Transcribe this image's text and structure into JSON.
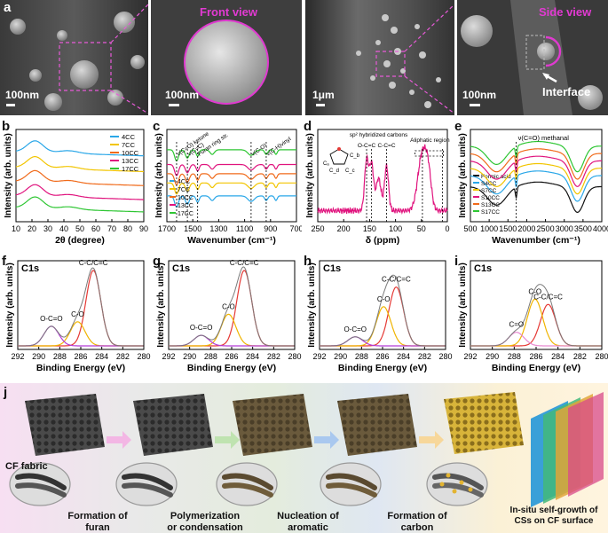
{
  "figure": {
    "row1": {
      "panel_a": {
        "letter": "a",
        "front_view_label": "Front view",
        "side_view_label": "Side view",
        "interface_label": "Interface",
        "scalebars": [
          "100nm",
          "100nm",
          "1μm",
          "100nm"
        ]
      }
    },
    "panel_b": {
      "letter": "b"
    },
    "panel_c": {
      "letter": "c"
    },
    "panel_d": {
      "letter": "d"
    },
    "panel_e": {
      "letter": "e"
    },
    "panel_f": {
      "letter": "f"
    },
    "panel_g": {
      "letter": "g"
    },
    "panel_h": {
      "letter": "h"
    },
    "panel_i": {
      "letter": "i"
    },
    "panel_j": {
      "letter": "j",
      "stage_labels": [
        "CF fabric",
        "Formation of furan compounds",
        "Polymerization or condensation",
        "Nucleation of aromatic clusters",
        "Formation of carbon spheres",
        "In-situ self-growth of CSs on CF surface"
      ]
    }
  },
  "chart_data": [
    {
      "id": "b",
      "type": "line",
      "xlabel": "2θ (degree)",
      "ylabel": "Intensity (arb. units)",
      "xlim": [
        10,
        90
      ],
      "x_ticks": [
        "10",
        "20",
        "30",
        "40",
        "50",
        "60",
        "70",
        "80",
        "90"
      ],
      "legend": [
        "4CC",
        "7CC",
        "10CC",
        "13CC",
        "17CC"
      ],
      "legend_position": "top-right",
      "colors": [
        "#2aa7e8",
        "#f2c500",
        "#f06a1a",
        "#e0147e",
        "#2ec633"
      ],
      "peak_2theta": 22,
      "offsets": [
        0.8,
        0.62,
        0.46,
        0.3,
        0.16
      ]
    },
    {
      "id": "c",
      "type": "line",
      "xlabel": "Wavenumber (cm⁻¹)",
      "ylabel": "Intensity (arb. units)",
      "x_ticks": [
        "1700",
        "1500",
        "1300",
        "1100",
        "900",
        "700"
      ],
      "xlim": [
        1800,
        600
      ],
      "x_reversed": true,
      "legend": [
        "4CC",
        "7CC",
        "10CC",
        "13CC",
        "17CC"
      ],
      "legend_position": "bottom-left",
      "colors": [
        "#2aa7e8",
        "#f2c500",
        "#f06a1a",
        "#e0147e",
        "#2ec633"
      ],
      "annotations": [
        "ν(C=O) ketone",
        "ν(C=C)",
        "Furan ring str.",
        "ν(C-O)",
        "ν(C-H)vinyl"
      ],
      "annotation_positions_cm1": [
        1710,
        1610,
        1515,
        1020,
        880
      ]
    },
    {
      "id": "d",
      "type": "line",
      "xlabel": "δ (ppm)",
      "ylabel": "Intensity (arb. units)",
      "xlim": [
        250,
        -10
      ],
      "x_ticks": [
        "250",
        "200",
        "150",
        "100",
        "50",
        "0"
      ],
      "annotations": [
        "sp² hybridized carbons",
        "O-C=C",
        "C-C=C",
        "Aliphatic region",
        "Cₐ",
        "C_b",
        "C_c",
        "C_d",
        "Cₐ",
        "C_b",
        "C_c",
        "C_d"
      ],
      "color": "#e0147e"
    },
    {
      "id": "e",
      "type": "line",
      "xlabel": "Wavenumber (cm⁻¹)",
      "ylabel": "Intensity (arb. units)",
      "xlim": [
        500,
        4000
      ],
      "x_ticks": [
        "500",
        "1000",
        "1500",
        "2000",
        "2500",
        "3000",
        "3500",
        "4000"
      ],
      "legend": [
        "Formic acid",
        "S4CC",
        "S7CC",
        "S10CC",
        "S13CC",
        "S17CC"
      ],
      "legend_position": "bottom-left",
      "colors": [
        "#111111",
        "#2aa7e8",
        "#f2c500",
        "#e0147e",
        "#f06a1a",
        "#2ec633"
      ],
      "annotations": [
        "ν(C=O) methanal"
      ]
    },
    {
      "id": "f",
      "type": "line",
      "title": "C1s",
      "xlabel": "Binding Energy (eV)",
      "ylabel": "Intensity (arb. units)",
      "xlim": [
        292,
        280
      ],
      "x_ticks": [
        "292",
        "290",
        "288",
        "286",
        "284",
        "282",
        "280"
      ],
      "peaks": [
        {
          "name": "C-C/C=C",
          "center": 284.8,
          "height": 1.0,
          "color": "#e53935"
        },
        {
          "name": "C-O",
          "center": 286.3,
          "height": 0.32,
          "color": "#f0b400"
        },
        {
          "name": "O-C=O",
          "center": 288.8,
          "height": 0.26,
          "color": "#b43bd6"
        }
      ]
    },
    {
      "id": "g",
      "type": "line",
      "title": "C1s",
      "xlabel": "Binding Energy (eV)",
      "ylabel": "Intensity (arb. units)",
      "xlim": [
        292,
        280
      ],
      "x_ticks": [
        "292",
        "290",
        "288",
        "286",
        "284",
        "282",
        "280"
      ],
      "peaks": [
        {
          "name": "C-C/C=C",
          "center": 284.8,
          "height": 1.0,
          "color": "#e53935"
        },
        {
          "name": "C-O",
          "center": 286.3,
          "height": 0.42,
          "color": "#f0b400"
        },
        {
          "name": "O-C=O",
          "center": 288.9,
          "height": 0.14,
          "color": "#b43bd6"
        }
      ]
    },
    {
      "id": "h",
      "type": "line",
      "title": "C1s",
      "xlabel": "Binding Energy (eV)",
      "ylabel": "Intensity (arb. units)",
      "xlim": [
        292,
        280
      ],
      "x_ticks": [
        "292",
        "290",
        "288",
        "286",
        "284",
        "282",
        "280"
      ],
      "peaks": [
        {
          "name": "C-C/C=C",
          "center": 284.7,
          "height": 0.78,
          "color": "#e53935"
        },
        {
          "name": "C-O",
          "center": 285.9,
          "height": 0.52,
          "color": "#f0b400"
        },
        {
          "name": "O-C=O",
          "center": 288.6,
          "height": 0.12,
          "color": "#b43bd6"
        }
      ]
    },
    {
      "id": "i",
      "type": "line",
      "title": "C1s",
      "xlabel": "Binding Energy (eV)",
      "ylabel": "Intensity (arb. units)",
      "xlim": [
        292,
        280
      ],
      "x_ticks": [
        "292",
        "290",
        "288",
        "286",
        "284",
        "282",
        "280"
      ],
      "peaks": [
        {
          "name": "C-C/C=C",
          "center": 284.9,
          "height": 0.55,
          "color": "#e53935"
        },
        {
          "name": "C-O",
          "center": 286.1,
          "height": 0.62,
          "color": "#f0b400"
        },
        {
          "name": "C=O",
          "center": 287.8,
          "height": 0.18,
          "color": "#e88ad0"
        }
      ]
    }
  ]
}
